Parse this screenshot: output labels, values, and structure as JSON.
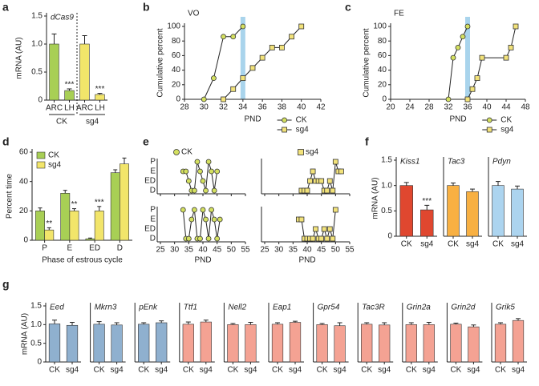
{
  "chart_data": [
    {
      "type": "bar",
      "panel_label": "a",
      "title": "dCas9",
      "ylabel": "mRNA (AU)",
      "categories": [
        "ARC",
        "LH",
        "ARC",
        "LH"
      ],
      "groups": [
        "CK",
        "sg4"
      ],
      "values": [
        1,
        0.17,
        1,
        0.1
      ],
      "errors": [
        0.18,
        0.03,
        0.15,
        0.02
      ],
      "colors": [
        "#a8cf55",
        "#a8cf55",
        "#f2e56a",
        "#f2e56a"
      ],
      "value_annotations": [
        null,
        "***",
        null,
        "***"
      ],
      "ylim": [
        0,
        1.5
      ],
      "yticks": [
        0,
        0.5,
        {
          "value": 1,
          "label": "1.0"
        },
        1.5
      ]
    },
    {
      "type": "line",
      "panel_label": "b",
      "title": "VO",
      "xlabel": "PND",
      "ylabel": "Cumulative percent",
      "highlight_x": 34,
      "xlim": [
        28,
        42
      ],
      "xticks": [
        28,
        30,
        32,
        34,
        36,
        38,
        40,
        42
      ],
      "ylim": [
        0,
        100
      ],
      "yticks": [
        0,
        20,
        40,
        60,
        80,
        100
      ],
      "series": [
        {
          "name": "CK",
          "marker": "circle",
          "color": "#d4e060",
          "x": [
            30,
            31,
            32,
            33,
            34
          ],
          "values": [
            0,
            29,
            86,
            86,
            100
          ]
        },
        {
          "name": "sg4",
          "marker": "square",
          "color": "#f2e27a",
          "x": [
            32,
            33,
            34,
            35,
            36,
            37,
            38,
            39,
            40
          ],
          "values": [
            0,
            14,
            29,
            43,
            57,
            71,
            71,
            86,
            100
          ]
        }
      ]
    },
    {
      "type": "line",
      "panel_label": "c",
      "title": "FE",
      "xlabel": "PND",
      "ylabel": "Cumulative percent",
      "highlight_x": 36,
      "xlim": [
        20,
        48
      ],
      "xticks": [
        20,
        24,
        28,
        32,
        36,
        40,
        44,
        48
      ],
      "ylim": [
        0,
        100
      ],
      "yticks": [
        0,
        20,
        40,
        60,
        80,
        100
      ],
      "series": [
        {
          "name": "CK",
          "marker": "circle",
          "color": "#d4e060",
          "x": [
            32,
            33,
            34,
            35,
            36
          ],
          "values": [
            0,
            57,
            71,
            86,
            100
          ]
        },
        {
          "name": "sg4",
          "marker": "square",
          "color": "#f2e27a",
          "x": [
            36,
            37,
            38,
            39,
            44,
            45,
            46
          ],
          "values": [
            0,
            14,
            29,
            57,
            57,
            71,
            100
          ]
        }
      ]
    },
    {
      "type": "grouped-bar",
      "panel_label": "d",
      "xlabel": "Phase of estrous cycle",
      "ylabel": "Percent time",
      "categories": [
        "P",
        "E",
        "ED",
        "D"
      ],
      "ylim": [
        0,
        60
      ],
      "yticks": [
        0,
        20,
        40,
        60
      ],
      "series": [
        {
          "name": "CK",
          "color": "#a8cf55",
          "values": [
            20,
            32,
            1,
            46
          ],
          "errors": [
            2,
            2,
            0.5,
            2
          ],
          "value_annotations": [
            null,
            null,
            null,
            null
          ]
        },
        {
          "name": "sg4",
          "color": "#f2e56a",
          "values": [
            7,
            20,
            20,
            52
          ],
          "errors": [
            1.5,
            1.5,
            3,
            4
          ],
          "value_annotations": [
            "**",
            "**",
            "***",
            null
          ]
        }
      ]
    },
    {
      "type": "stage",
      "panel_label": "e",
      "xlabel": "PND",
      "stages": [
        "P",
        "E",
        "ED",
        "D"
      ],
      "xlim": [
        25,
        55
      ],
      "xticks": [
        25,
        30,
        35,
        40,
        45,
        50,
        55
      ],
      "panels": [
        {
          "name": "CK",
          "marker": "circle",
          "color": "#d4e060",
          "x": [
            33,
            34,
            35,
            36,
            37,
            38,
            39,
            40,
            41,
            42,
            43,
            44,
            45
          ],
          "values": [
            "E",
            "E",
            "ED",
            "D",
            "D",
            "P",
            "E",
            "ED",
            "D",
            "P",
            "E",
            "D",
            "E"
          ]
        },
        {
          "name": "sg4",
          "marker": "square",
          "color": "#f2e27a",
          "x": [
            38,
            39,
            40,
            41,
            42,
            43,
            44,
            45,
            46,
            47,
            48,
            49,
            50,
            51,
            52
          ],
          "values": [
            "D",
            "D",
            "D",
            "ED",
            "E",
            "ED",
            "ED",
            "ED",
            "D",
            "D",
            "ED",
            "D",
            "P",
            "E",
            "E"
          ]
        },
        {
          "marker": "circle",
          "color": "#d4e060",
          "x": [
            33,
            34,
            35,
            36,
            37,
            38,
            39,
            40,
            41,
            42,
            43,
            44,
            45,
            46
          ],
          "values": [
            "P",
            "D",
            "D",
            "E",
            "P",
            "D",
            "D",
            "P",
            "E",
            "D",
            "P",
            "E",
            "D",
            "E"
          ]
        },
        {
          "marker": "square",
          "color": "#f2e27a",
          "x": [
            37,
            38,
            39,
            40,
            41,
            42,
            43,
            44,
            45,
            46,
            47,
            48,
            49,
            50
          ],
          "values": [
            "E",
            "E",
            "D",
            "D",
            "D",
            "D",
            "ED",
            "D",
            "D",
            "ED",
            "D",
            "ED",
            "D",
            "P"
          ]
        }
      ]
    },
    {
      "type": "bar",
      "panel_label": "f",
      "title": "Kiss1",
      "ylabel": "mRNA (AU)",
      "categories": [
        "CK",
        "sg4"
      ],
      "values": [
        1,
        0.52
      ],
      "errors": [
        0.06,
        0.09
      ],
      "colors": [
        "#e0472f",
        "#e0472f"
      ],
      "value_annotations": [
        null,
        "***"
      ],
      "ylim": [
        0,
        1.5
      ],
      "yticks": [
        0,
        0.5,
        {
          "value": 1,
          "label": "1.0"
        },
        1.5
      ]
    },
    {
      "type": "bar",
      "title": "Tac3",
      "categories": [
        "CK",
        "sg4"
      ],
      "values": [
        1,
        0.88
      ],
      "errors": [
        0.05,
        0.05
      ],
      "colors": [
        "#f8b042",
        "#f8b042"
      ],
      "ylim": [
        0,
        1.5
      ]
    },
    {
      "type": "bar",
      "title": "Pdyn",
      "categories": [
        "CK",
        "sg4"
      ],
      "values": [
        1,
        0.93
      ],
      "errors": [
        0.08,
        0.06
      ],
      "colors": [
        "#acd4ef",
        "#acd4ef"
      ],
      "ylim": [
        0,
        1.5
      ]
    },
    {
      "type": "bar",
      "panel_label": "g",
      "title": "Eed",
      "ylabel": "mRNA (AU)",
      "categories": [
        "CK",
        "sg4"
      ],
      "values": [
        1.02,
        0.98
      ],
      "errors": [
        0.1,
        0.08
      ],
      "colors": [
        "#8fb0cf",
        "#8fb0cf"
      ],
      "ylim": [
        0,
        1.5
      ],
      "yticks": [
        0,
        0.5,
        {
          "value": 1,
          "label": "1.0"
        },
        1.5
      ]
    },
    {
      "type": "bar",
      "title": "Mkrn3",
      "categories": [
        "CK",
        "sg4"
      ],
      "values": [
        1.01,
        0.99
      ],
      "errors": [
        0.07,
        0.06
      ],
      "colors": [
        "#8fb0cf",
        "#8fb0cf"
      ],
      "ylim": [
        0,
        1.5
      ]
    },
    {
      "type": "bar",
      "title": "pEnk",
      "categories": [
        "CK",
        "sg4"
      ],
      "values": [
        1.01,
        1.05
      ],
      "errors": [
        0.04,
        0.05
      ],
      "colors": [
        "#8fb0cf",
        "#8fb0cf"
      ],
      "ylim": [
        0,
        1.5
      ]
    },
    {
      "type": "bar",
      "title": "Ttf1",
      "categories": [
        "CK",
        "sg4"
      ],
      "values": [
        1.01,
        1.07
      ],
      "errors": [
        0.06,
        0.05
      ],
      "colors": [
        "#f4a293",
        "#f4a293"
      ],
      "ylim": [
        0,
        1.5
      ]
    },
    {
      "type": "bar",
      "title": "Nell2",
      "categories": [
        "CK",
        "sg4"
      ],
      "values": [
        1,
        1
      ],
      "errors": [
        0.03,
        0.06
      ],
      "colors": [
        "#f4a293",
        "#f4a293"
      ],
      "ylim": [
        0,
        1.5
      ]
    },
    {
      "type": "bar",
      "title": "Eap1",
      "categories": [
        "CK",
        "sg4"
      ],
      "values": [
        1.01,
        1.06
      ],
      "errors": [
        0.04,
        0.03
      ],
      "colors": [
        "#f4a293",
        "#f4a293"
      ],
      "ylim": [
        0,
        1.5
      ]
    },
    {
      "type": "bar",
      "title": "Gpr54",
      "categories": [
        "CK",
        "sg4"
      ],
      "values": [
        1,
        0.97
      ],
      "errors": [
        0.03,
        0.08
      ],
      "colors": [
        "#f4a293",
        "#f4a293"
      ],
      "ylim": [
        0,
        1.5
      ]
    },
    {
      "type": "bar",
      "title": "Tac3R",
      "categories": [
        "CK",
        "sg4"
      ],
      "values": [
        1.01,
        0.99
      ],
      "errors": [
        0.04,
        0.06
      ],
      "colors": [
        "#f4a293",
        "#f4a293"
      ],
      "ylim": [
        0,
        1.5
      ]
    },
    {
      "type": "bar",
      "title": "Grin2a",
      "categories": [
        "CK",
        "sg4"
      ],
      "values": [
        1,
        1
      ],
      "errors": [
        0.05,
        0.06
      ],
      "colors": [
        "#f4a293",
        "#f4a293"
      ],
      "ylim": [
        0,
        1.5
      ]
    },
    {
      "type": "bar",
      "title": "Grin2d",
      "categories": [
        "CK",
        "sg4"
      ],
      "values": [
        1.01,
        0.94
      ],
      "errors": [
        0.03,
        0.05
      ],
      "colors": [
        "#f4a293",
        "#f4a293"
      ],
      "ylim": [
        0,
        1.5
      ]
    },
    {
      "type": "bar",
      "title": "Grik5",
      "categories": [
        "CK",
        "sg4"
      ],
      "values": [
        1.01,
        1.11
      ],
      "errors": [
        0.04,
        0.05
      ],
      "colors": [
        "#f4a293",
        "#f4a293"
      ],
      "ylim": [
        0,
        1.5
      ]
    }
  ]
}
